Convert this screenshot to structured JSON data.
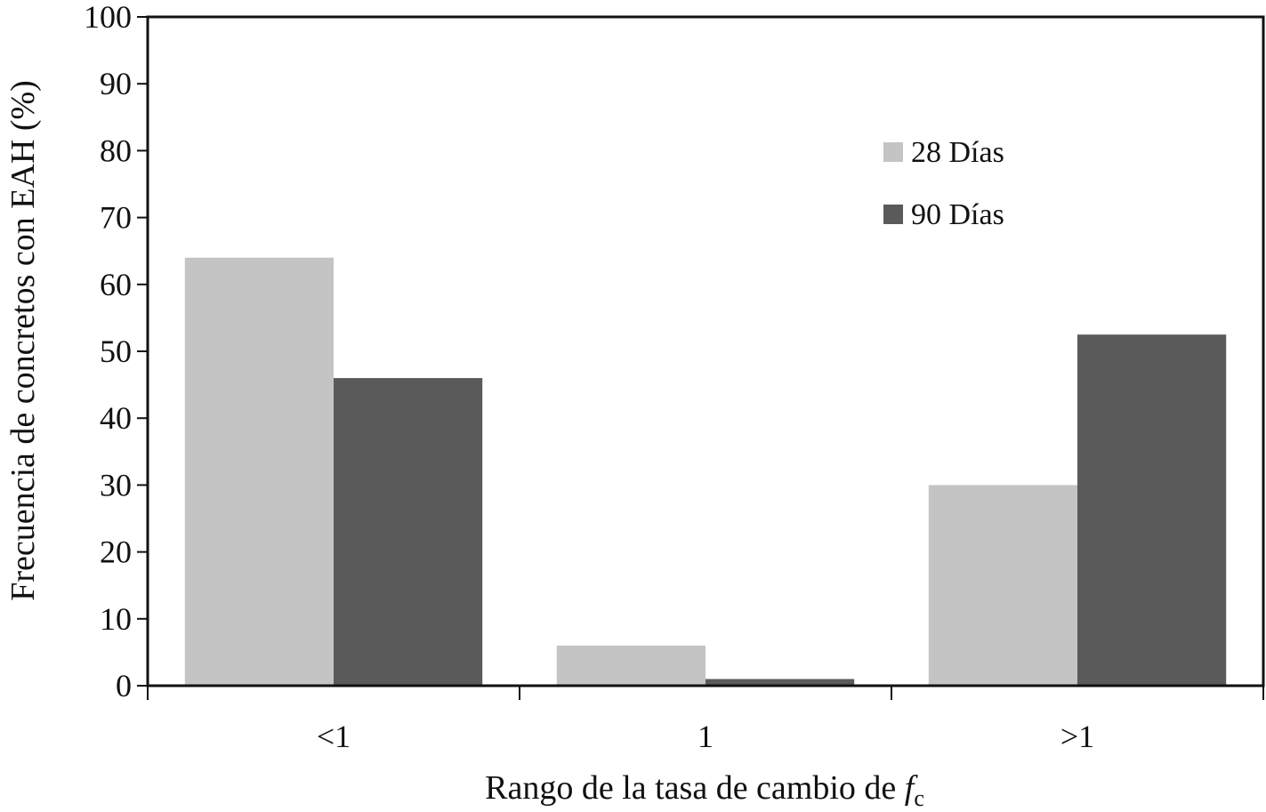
{
  "chart_data": {
    "type": "bar",
    "categories": [
      "<1",
      "1",
      ">1"
    ],
    "series": [
      {
        "name": "28 Días",
        "values": [
          64,
          6,
          30
        ],
        "color": "#c4c4c4"
      },
      {
        "name": "90 Días",
        "values": [
          46,
          1,
          52.5
        ],
        "color": "#5a5a5a"
      }
    ],
    "ylabel": "Frecuencia de concretos con EAH (%)",
    "xlabel_main": "Rango de la tasa de cambio de ",
    "xlabel_var": "f",
    "xlabel_sub": "c",
    "ylim": [
      0,
      100
    ],
    "yticks": [
      0,
      10,
      20,
      30,
      40,
      50,
      60,
      70,
      80,
      90,
      100
    ],
    "grid": false,
    "legend_position": "upper-right-inside"
  }
}
